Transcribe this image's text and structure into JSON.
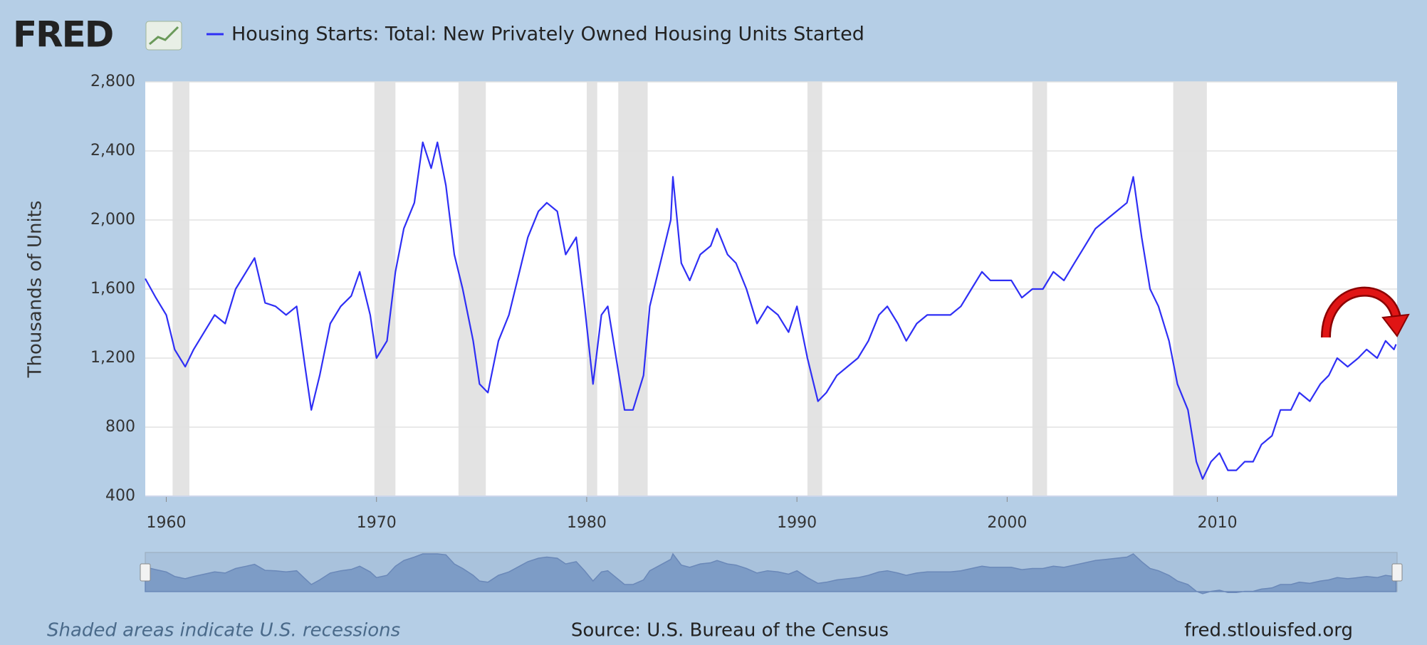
{
  "chart_data": {
    "type": "line",
    "logo": "FRED",
    "title": "Housing Starts: Total: New Privately Owned Housing Units Started",
    "y_label": "Thousands of Units",
    "note": "Shaded areas indicate U.S. recessions",
    "source": "Source: U.S. Bureau of the Census",
    "site": "fred.stlouisfed.org",
    "color": "#2f2ff5",
    "grid": true,
    "xlim": [
      1959,
      2018.55
    ],
    "xticks": [
      1960,
      1970,
      1980,
      1990,
      2000,
      2010
    ],
    "ylim": [
      400,
      2800
    ],
    "yticks": [
      {
        "value": 400,
        "label": "400"
      },
      {
        "value": 800,
        "label": "800"
      },
      {
        "value": 1200,
        "label": "1,200"
      },
      {
        "value": 1600,
        "label": "1,600"
      },
      {
        "value": 2000,
        "label": "2,000"
      },
      {
        "value": 2400,
        "label": "2,400"
      },
      {
        "value": 2800,
        "label": "2,800"
      }
    ],
    "recessions": [
      [
        1960.3,
        1961.1
      ],
      [
        1969.9,
        1970.9
      ],
      [
        1973.9,
        1975.2
      ],
      [
        1980.0,
        1980.5
      ],
      [
        1981.5,
        1982.9
      ],
      [
        1990.5,
        1991.2
      ],
      [
        2001.2,
        2001.9
      ],
      [
        2007.9,
        2009.5
      ]
    ],
    "x": [
      1959.0,
      1959.5,
      1960.0,
      1960.4,
      1960.9,
      1961.3,
      1961.8,
      1962.3,
      1962.8,
      1963.3,
      1963.8,
      1964.2,
      1964.7,
      1965.2,
      1965.7,
      1966.2,
      1966.6,
      1966.9,
      1967.3,
      1967.8,
      1968.3,
      1968.8,
      1969.2,
      1969.7,
      1970.0,
      1970.5,
      1970.9,
      1971.3,
      1971.8,
      1972.2,
      1972.6,
      1972.9,
      1973.3,
      1973.7,
      1974.1,
      1974.6,
      1974.9,
      1975.3,
      1975.8,
      1976.3,
      1976.8,
      1977.2,
      1977.7,
      1978.1,
      1978.6,
      1979.0,
      1979.5,
      1979.9,
      1980.3,
      1980.7,
      1981.0,
      1981.4,
      1981.8,
      1982.2,
      1982.7,
      1983.0,
      1983.5,
      1984.0,
      1984.1,
      1984.5,
      1984.9,
      1985.4,
      1985.9,
      1986.2,
      1986.7,
      1987.1,
      1987.6,
      1988.1,
      1988.6,
      1989.1,
      1989.6,
      1990.0,
      1990.5,
      1991.0,
      1991.4,
      1991.9,
      1992.4,
      1992.9,
      1993.4,
      1993.9,
      1994.3,
      1994.8,
      1995.2,
      1995.7,
      1996.2,
      1996.8,
      1997.3,
      1997.8,
      1998.3,
      1998.8,
      1999.2,
      1999.7,
      2000.2,
      2000.7,
      2001.2,
      2001.7,
      2002.2,
      2002.7,
      2003.2,
      2003.7,
      2004.2,
      2004.7,
      2005.2,
      2005.7,
      2006.0,
      2006.4,
      2006.8,
      2007.2,
      2007.7,
      2008.1,
      2008.6,
      2009.0,
      2009.3,
      2009.7,
      2010.1,
      2010.5,
      2010.9,
      2011.3,
      2011.7,
      2012.1,
      2012.6,
      2013.0,
      2013.5,
      2013.9,
      2014.4,
      2014.9,
      2015.3,
      2015.7,
      2016.2,
      2016.7,
      2017.1,
      2017.6,
      2018.0,
      2018.4,
      2018.5
    ],
    "values": [
      1660,
      1550,
      1450,
      1250,
      1150,
      1250,
      1350,
      1450,
      1400,
      1600,
      1700,
      1780,
      1520,
      1500,
      1450,
      1500,
      1150,
      900,
      1100,
      1400,
      1500,
      1560,
      1700,
      1450,
      1200,
      1300,
      1700,
      1950,
      2100,
      2450,
      2300,
      2450,
      2200,
      1800,
      1600,
      1300,
      1050,
      1000,
      1300,
      1450,
      1700,
      1900,
      2050,
      2100,
      2050,
      1800,
      1900,
      1500,
      1050,
      1450,
      1500,
      1200,
      900,
      900,
      1100,
      1500,
      1750,
      2000,
      2250,
      1750,
      1650,
      1800,
      1850,
      1950,
      1800,
      1750,
      1600,
      1400,
      1500,
      1450,
      1350,
      1500,
      1200,
      950,
      1000,
      1100,
      1150,
      1200,
      1300,
      1450,
      1500,
      1400,
      1300,
      1400,
      1450,
      1450,
      1450,
      1500,
      1600,
      1700,
      1650,
      1650,
      1650,
      1550,
      1600,
      1600,
      1700,
      1650,
      1750,
      1850,
      1950,
      2000,
      2050,
      2100,
      2250,
      1900,
      1600,
      1500,
      1300,
      1050,
      900,
      600,
      500,
      600,
      650,
      550,
      550,
      600,
      600,
      700,
      750,
      900,
      900,
      1000,
      950,
      1050,
      1100,
      1200,
      1150,
      1200,
      1250,
      1200,
      1300,
      1250,
      1280
    ]
  }
}
